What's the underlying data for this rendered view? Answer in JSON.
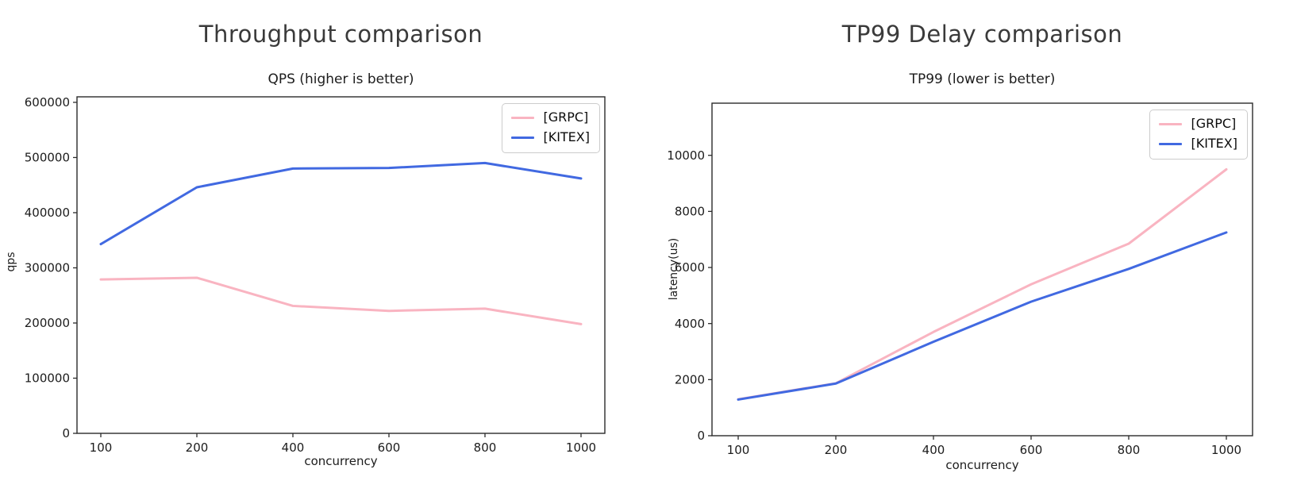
{
  "page": {
    "background": "#ffffff"
  },
  "chart_data": [
    {
      "type": "line",
      "figure_title": "Throughput comparison",
      "title": "QPS (higher is better)",
      "xlabel": "concurrency",
      "ylabel": "qps",
      "categories": [
        100,
        200,
        400,
        600,
        800,
        1000
      ],
      "series": [
        {
          "name": "[GRPC]",
          "color": "#f9b4c1",
          "values": [
            279000,
            282000,
            231000,
            222000,
            226000,
            198000
          ]
        },
        {
          "name": "[KITEX]",
          "color": "#4169e1",
          "values": [
            343000,
            446000,
            480000,
            481000,
            490000,
            462000
          ]
        }
      ],
      "yticks": [
        0,
        100000,
        200000,
        300000,
        400000,
        500000,
        600000
      ],
      "ylim": [
        0,
        610000
      ],
      "grid": false,
      "legend_position": "upper right"
    },
    {
      "type": "line",
      "figure_title": "TP99 Delay comparison",
      "title": "TP99 (lower is better)",
      "xlabel": "concurrency",
      "ylabel": "latency(us)",
      "categories": [
        100,
        200,
        400,
        600,
        800,
        1000
      ],
      "series": [
        {
          "name": "[GRPC]",
          "color": "#f9b4c1",
          "values": [
            1300,
            1870,
            3700,
            5400,
            6850,
            9500
          ]
        },
        {
          "name": "[KITEX]",
          "color": "#4169e1",
          "values": [
            1290,
            1860,
            3350,
            4780,
            5950,
            7250
          ]
        }
      ],
      "yticks": [
        0,
        2000,
        4000,
        6000,
        8000,
        10000
      ],
      "ylim": [
        0,
        11860
      ],
      "grid": false,
      "legend_position": "upper right"
    }
  ]
}
